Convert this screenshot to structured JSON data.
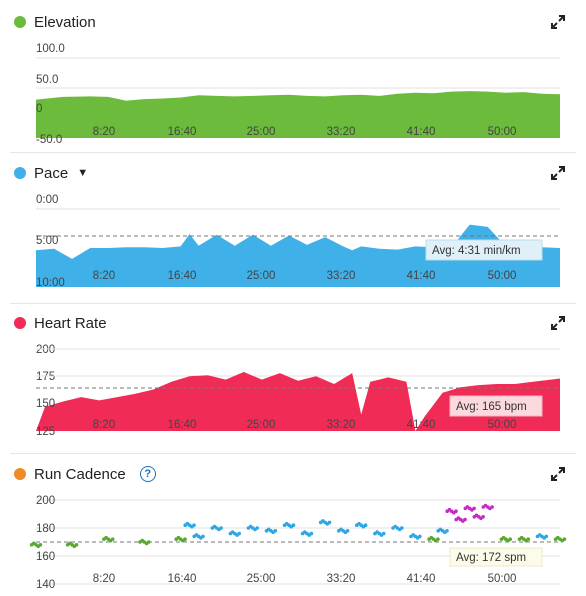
{
  "expand_icon": "expand-arrows-icon",
  "colors": {
    "elevation": "#6cbb3c",
    "pace": "#40b0e8",
    "heart_rate": "#ef2b56",
    "cadence": "#f08a26",
    "cadence_green": "#5aa832",
    "cadence_blue": "#2ea6e6",
    "cadence_purple": "#c62bc4",
    "help": "#1a6fb5"
  },
  "x_ticks": [
    "8:20",
    "16:40",
    "25:00",
    "33:20",
    "41:40",
    "50:00"
  ],
  "panels": {
    "elevation": {
      "title": "Elevation",
      "y_ticks": [
        "100.0",
        "50.0",
        "0",
        "-50.0"
      ]
    },
    "pace": {
      "title": "Pace",
      "caret": "▼",
      "y_ticks": [
        "0:00",
        "5:00",
        "10:00"
      ],
      "avg_label": "Avg: 4:31 min/km"
    },
    "heart_rate": {
      "title": "Heart Rate",
      "y_ticks": [
        "200",
        "175",
        "150",
        "125"
      ],
      "avg_label": "Avg: 165 bpm"
    },
    "cadence": {
      "title": "Run Cadence",
      "help_label": "?",
      "y_ticks": [
        "200",
        "180",
        "160",
        "140"
      ],
      "avg_label": "Avg: 172 spm"
    }
  },
  "chart_data": [
    {
      "type": "area",
      "title": "Elevation",
      "x_unit": "min:sec",
      "ylim": [
        -50,
        100
      ],
      "x_minutes": [
        0,
        3,
        6,
        8,
        10,
        12,
        14,
        16,
        18,
        20,
        22,
        24,
        26,
        28,
        30,
        32,
        34,
        36,
        38,
        40,
        42,
        44,
        46,
        48,
        50,
        52,
        54,
        56,
        58
      ],
      "values": [
        22,
        27,
        28,
        27,
        20,
        23,
        24,
        26,
        30,
        29,
        28,
        29,
        30,
        31,
        29,
        28,
        30,
        31,
        29,
        33,
        35,
        34,
        37,
        38,
        37,
        35,
        36,
        33,
        32
      ]
    },
    {
      "type": "area",
      "title": "Pace",
      "x_unit": "min:sec",
      "y_unit": "min/km",
      "ylim": [
        10,
        0
      ],
      "average": "4:31",
      "x_minutes": [
        0,
        2,
        4,
        6,
        8,
        10,
        12,
        14,
        16,
        17,
        18,
        20,
        22,
        24,
        26,
        28,
        30,
        32,
        34,
        35,
        36,
        38,
        40,
        42,
        44,
        46,
        48,
        50,
        52,
        54,
        56,
        58
      ],
      "values": [
        5.3,
        5.1,
        6.4,
        5.0,
        5.0,
        4.9,
        4.9,
        5.0,
        4.8,
        3.2,
        4.7,
        3.3,
        4.7,
        3.3,
        4.7,
        3.4,
        4.6,
        3.6,
        4.8,
        5.3,
        4.8,
        5.1,
        5.2,
        4.8,
        4.9,
        4.9,
        2.0,
        2.3,
        4.8,
        4.9,
        4.9,
        5.0
      ]
    },
    {
      "type": "area",
      "title": "Heart Rate",
      "x_unit": "min:sec",
      "y_unit": "bpm",
      "ylim": [
        125,
        200
      ],
      "average": 165,
      "x_minutes": [
        0,
        1,
        3,
        5,
        7,
        9,
        11,
        13,
        15,
        17,
        19,
        21,
        23,
        25,
        27,
        29,
        31,
        33,
        35,
        36,
        37,
        39,
        41,
        42,
        43,
        45,
        47,
        49,
        51,
        53,
        55,
        57,
        58
      ],
      "values": [
        125,
        147,
        152,
        156,
        153,
        156,
        159,
        163,
        170,
        175,
        176,
        172,
        179,
        172,
        178,
        171,
        175,
        168,
        178,
        140,
        170,
        174,
        170,
        125,
        138,
        160,
        165,
        167,
        168,
        168,
        170,
        172,
        173
      ]
    },
    {
      "type": "scatter",
      "title": "Run Cadence",
      "x_unit": "min:sec",
      "y_unit": "spm",
      "ylim": [
        140,
        200
      ],
      "average": 172,
      "series_colors": [
        "#5aa832",
        "#2ea6e6",
        "#c62bc4"
      ],
      "x_minutes": [
        0,
        4,
        8,
        12,
        16,
        17,
        18,
        20,
        22,
        24,
        26,
        28,
        30,
        32,
        34,
        36,
        38,
        40,
        42,
        44,
        45,
        46,
        47,
        48,
        49,
        50,
        52,
        54,
        56,
        58
      ],
      "values": [
        168,
        168,
        172,
        170,
        172,
        182,
        174,
        180,
        176,
        180,
        178,
        182,
        176,
        184,
        178,
        182,
        176,
        180,
        174,
        172,
        178,
        192,
        186,
        194,
        188,
        195,
        172,
        172,
        174,
        172
      ]
    }
  ]
}
